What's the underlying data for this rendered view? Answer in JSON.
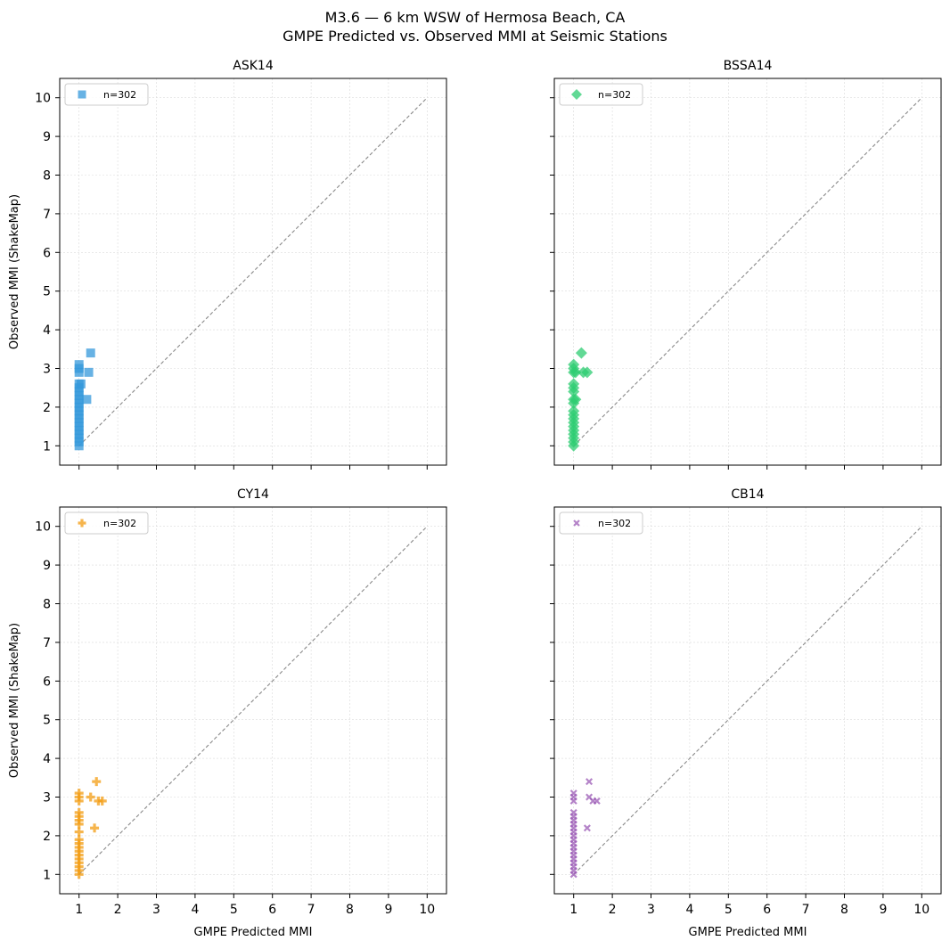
{
  "figure": {
    "title": "M3.6 — 6 km WSW of Hermosa Beach, CA",
    "subtitle": "GMPE Predicted vs. Observed MMI at Seismic Stations"
  },
  "chart_data": [
    {
      "type": "scatter",
      "title": "ASK14",
      "xlabel": "",
      "ylabel": "Observed MMI (ShakeMap)",
      "xlim": [
        0.5,
        10.5
      ],
      "ylim": [
        0.5,
        10.5
      ],
      "xticks": [
        1,
        2,
        3,
        4,
        5,
        6,
        7,
        8,
        9,
        10
      ],
      "yticks": [
        1,
        2,
        3,
        4,
        5,
        6,
        7,
        8,
        9,
        10
      ],
      "show_xtick_labels": false,
      "show_ytick_labels": true,
      "grid": true,
      "reference_line": {
        "from": [
          1,
          1
        ],
        "to": [
          10,
          10
        ],
        "style": "dashed",
        "color": "#888888"
      },
      "legend": {
        "placement": "top-left",
        "label": "n=302"
      },
      "marker": "square",
      "color": "#3498db",
      "points": [
        [
          1.0,
          1.0
        ],
        [
          1.0,
          1.1
        ],
        [
          1.0,
          1.2
        ],
        [
          1.0,
          1.3
        ],
        [
          1.0,
          1.4
        ],
        [
          1.0,
          1.5
        ],
        [
          1.0,
          1.6
        ],
        [
          1.0,
          1.7
        ],
        [
          1.0,
          1.8
        ],
        [
          1.0,
          1.9
        ],
        [
          1.0,
          2.0
        ],
        [
          1.0,
          2.1
        ],
        [
          1.0,
          2.2
        ],
        [
          1.0,
          2.3
        ],
        [
          1.0,
          2.4
        ],
        [
          1.0,
          2.5
        ],
        [
          1.0,
          2.6
        ],
        [
          1.0,
          2.9
        ],
        [
          1.0,
          3.0
        ],
        [
          1.0,
          3.1
        ],
        [
          1.05,
          2.6
        ],
        [
          1.2,
          2.2
        ],
        [
          1.25,
          2.9
        ],
        [
          1.3,
          3.4
        ]
      ]
    },
    {
      "type": "scatter",
      "title": "BSSA14",
      "xlabel": "",
      "ylabel": "",
      "xlim": [
        0.5,
        10.5
      ],
      "ylim": [
        0.5,
        10.5
      ],
      "xticks": [
        1,
        2,
        3,
        4,
        5,
        6,
        7,
        8,
        9,
        10
      ],
      "yticks": [
        1,
        2,
        3,
        4,
        5,
        6,
        7,
        8,
        9,
        10
      ],
      "show_xtick_labels": false,
      "show_ytick_labels": false,
      "grid": true,
      "reference_line": {
        "from": [
          1,
          1
        ],
        "to": [
          10,
          10
        ],
        "style": "dashed",
        "color": "#888888"
      },
      "legend": {
        "placement": "top-left",
        "label": "n=302"
      },
      "marker": "diamond",
      "color": "#2ecc71",
      "points": [
        [
          1.0,
          1.0
        ],
        [
          1.0,
          1.1
        ],
        [
          1.0,
          1.2
        ],
        [
          1.0,
          1.3
        ],
        [
          1.0,
          1.4
        ],
        [
          1.0,
          1.5
        ],
        [
          1.0,
          1.6
        ],
        [
          1.0,
          1.7
        ],
        [
          1.0,
          1.8
        ],
        [
          1.0,
          1.9
        ],
        [
          1.0,
          2.1
        ],
        [
          1.0,
          2.2
        ],
        [
          1.0,
          2.4
        ],
        [
          1.0,
          2.5
        ],
        [
          1.0,
          2.6
        ],
        [
          1.0,
          2.9
        ],
        [
          1.0,
          3.0
        ],
        [
          1.0,
          3.1
        ],
        [
          1.05,
          2.2
        ],
        [
          1.05,
          2.9
        ],
        [
          1.2,
          3.4
        ],
        [
          1.25,
          2.9
        ],
        [
          1.35,
          2.9
        ]
      ]
    },
    {
      "type": "scatter",
      "title": "CY14",
      "xlabel": "GMPE Predicted MMI",
      "ylabel": "Observed MMI (ShakeMap)",
      "xlim": [
        0.5,
        10.5
      ],
      "ylim": [
        0.5,
        10.5
      ],
      "xticks": [
        1,
        2,
        3,
        4,
        5,
        6,
        7,
        8,
        9,
        10
      ],
      "yticks": [
        1,
        2,
        3,
        4,
        5,
        6,
        7,
        8,
        9,
        10
      ],
      "show_xtick_labels": true,
      "show_ytick_labels": true,
      "grid": true,
      "reference_line": {
        "from": [
          1,
          1
        ],
        "to": [
          10,
          10
        ],
        "style": "dashed",
        "color": "#888888"
      },
      "legend": {
        "placement": "top-left",
        "label": "n=302"
      },
      "marker": "plus",
      "color": "#f39c12",
      "points": [
        [
          1.0,
          1.0
        ],
        [
          1.0,
          1.1
        ],
        [
          1.0,
          1.2
        ],
        [
          1.0,
          1.3
        ],
        [
          1.0,
          1.4
        ],
        [
          1.0,
          1.5
        ],
        [
          1.0,
          1.6
        ],
        [
          1.0,
          1.7
        ],
        [
          1.0,
          1.8
        ],
        [
          1.0,
          1.9
        ],
        [
          1.0,
          2.1
        ],
        [
          1.0,
          2.3
        ],
        [
          1.0,
          2.4
        ],
        [
          1.0,
          2.5
        ],
        [
          1.0,
          2.6
        ],
        [
          1.0,
          2.9
        ],
        [
          1.0,
          3.0
        ],
        [
          1.0,
          3.1
        ],
        [
          1.3,
          3.0
        ],
        [
          1.4,
          2.2
        ],
        [
          1.45,
          3.4
        ],
        [
          1.5,
          2.9
        ],
        [
          1.6,
          2.9
        ]
      ]
    },
    {
      "type": "scatter",
      "title": "CB14",
      "xlabel": "GMPE Predicted MMI",
      "ylabel": "",
      "xlim": [
        0.5,
        10.5
      ],
      "ylim": [
        0.5,
        10.5
      ],
      "xticks": [
        1,
        2,
        3,
        4,
        5,
        6,
        7,
        8,
        9,
        10
      ],
      "yticks": [
        1,
        2,
        3,
        4,
        5,
        6,
        7,
        8,
        9,
        10
      ],
      "show_xtick_labels": true,
      "show_ytick_labels": false,
      "grid": true,
      "reference_line": {
        "from": [
          1,
          1
        ],
        "to": [
          10,
          10
        ],
        "style": "dashed",
        "color": "#888888"
      },
      "legend": {
        "placement": "top-left",
        "label": "n=302"
      },
      "marker": "x",
      "color": "#9b59b6",
      "points": [
        [
          1.0,
          1.0
        ],
        [
          1.0,
          1.1
        ],
        [
          1.0,
          1.2
        ],
        [
          1.0,
          1.3
        ],
        [
          1.0,
          1.4
        ],
        [
          1.0,
          1.5
        ],
        [
          1.0,
          1.6
        ],
        [
          1.0,
          1.7
        ],
        [
          1.0,
          1.8
        ],
        [
          1.0,
          1.9
        ],
        [
          1.0,
          2.0
        ],
        [
          1.0,
          2.1
        ],
        [
          1.0,
          2.2
        ],
        [
          1.0,
          2.3
        ],
        [
          1.0,
          2.4
        ],
        [
          1.0,
          2.5
        ],
        [
          1.0,
          2.6
        ],
        [
          1.0,
          2.9
        ],
        [
          1.0,
          3.0
        ],
        [
          1.0,
          3.1
        ],
        [
          1.35,
          2.2
        ],
        [
          1.4,
          3.0
        ],
        [
          1.4,
          3.4
        ],
        [
          1.5,
          2.9
        ],
        [
          1.6,
          2.9
        ]
      ]
    }
  ]
}
